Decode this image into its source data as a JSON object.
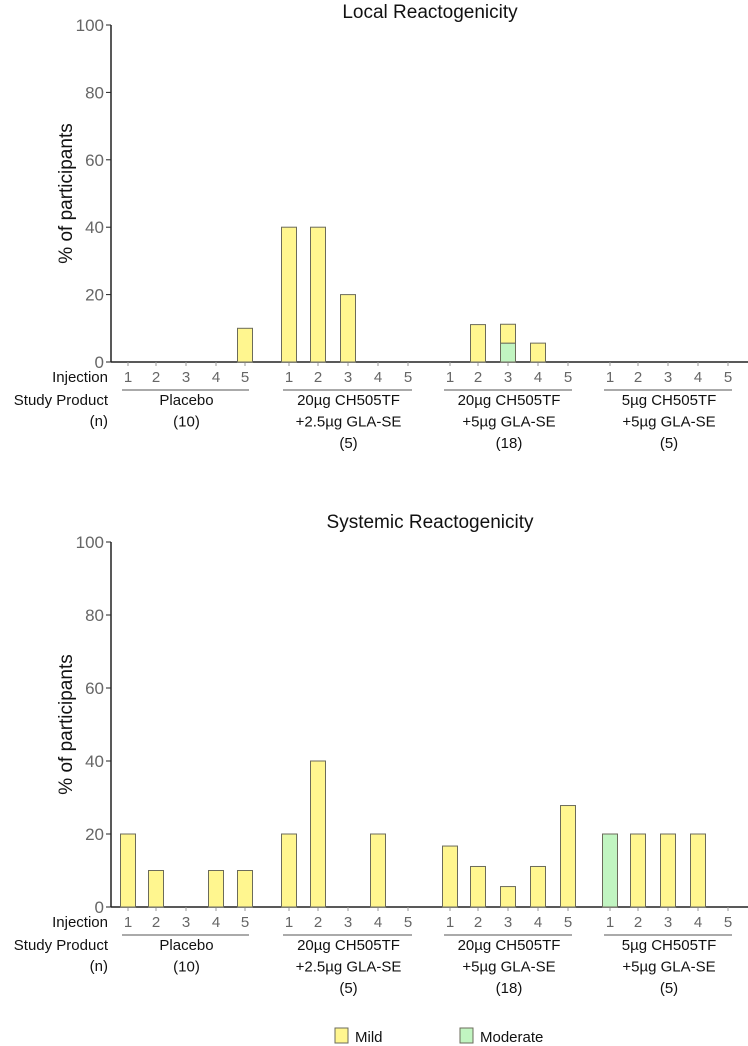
{
  "colors": {
    "mild": "#fff68f",
    "moderate": "#c1f5c1",
    "bar_stroke": "#6b6b5b",
    "axis": "#222222",
    "tick_label": "#666666"
  },
  "chart_data": [
    {
      "type": "bar",
      "stacked": true,
      "title": "Local Reactogenicity",
      "ylabel": "% of participants",
      "ylim": [
        0,
        100
      ],
      "yticks": [
        "0",
        "20",
        "40",
        "60",
        "80",
        "100"
      ],
      "row_labels": {
        "injection": "Injection",
        "study_product": "Study Product",
        "n": "(n)"
      },
      "groups": [
        {
          "lines": [
            "Placebo",
            "(10)"
          ],
          "injections": [
            "1",
            "2",
            "3",
            "4",
            "5"
          ],
          "mild": [
            0,
            0,
            0,
            0,
            10
          ],
          "moderate": [
            0,
            0,
            0,
            0,
            0
          ]
        },
        {
          "lines": [
            "20µg CH505TF",
            "+2.5µg GLA-SE",
            "(5)"
          ],
          "injections": [
            "1",
            "2",
            "3",
            "4",
            "5"
          ],
          "mild": [
            40,
            40,
            20,
            0,
            0
          ],
          "moderate": [
            0,
            0,
            0,
            0,
            0
          ]
        },
        {
          "lines": [
            "20µg CH505TF",
            "+5µg GLA-SE",
            "(18)"
          ],
          "injections": [
            "1",
            "2",
            "3",
            "4",
            "5"
          ],
          "mild": [
            0,
            11.1,
            5.6,
            5.6,
            0
          ],
          "moderate": [
            0,
            0,
            5.6,
            0,
            0
          ]
        },
        {
          "lines": [
            "5µg CH505TF",
            "+5µg GLA-SE",
            "(5)"
          ],
          "injections": [
            "1",
            "2",
            "3",
            "4",
            "5"
          ],
          "mild": [
            0,
            0,
            0,
            0,
            0
          ],
          "moderate": [
            0,
            0,
            0,
            0,
            0
          ]
        }
      ]
    },
    {
      "type": "bar",
      "stacked": true,
      "title": "Systemic Reactogenicity",
      "ylabel": "% of participants",
      "ylim": [
        0,
        100
      ],
      "yticks": [
        "0",
        "20",
        "40",
        "60",
        "80",
        "100"
      ],
      "row_labels": {
        "injection": "Injection",
        "study_product": "Study Product",
        "n": "(n)"
      },
      "groups": [
        {
          "lines": [
            "Placebo",
            "(10)"
          ],
          "injections": [
            "1",
            "2",
            "3",
            "4",
            "5"
          ],
          "mild": [
            20,
            10,
            0,
            10,
            10
          ],
          "moderate": [
            0,
            0,
            0,
            0,
            0
          ]
        },
        {
          "lines": [
            "20µg CH505TF",
            "+2.5µg GLA-SE",
            "(5)"
          ],
          "injections": [
            "1",
            "2",
            "3",
            "4",
            "5"
          ],
          "mild": [
            20,
            40,
            0,
            20,
            0
          ],
          "moderate": [
            0,
            0,
            0,
            0,
            0
          ]
        },
        {
          "lines": [
            "20µg CH505TF",
            "+5µg GLA-SE",
            "(18)"
          ],
          "injections": [
            "1",
            "2",
            "3",
            "4",
            "5"
          ],
          "mild": [
            16.7,
            11.1,
            5.6,
            11.1,
            27.8
          ],
          "moderate": [
            0,
            0,
            0,
            0,
            0
          ]
        },
        {
          "lines": [
            "5µg CH505TF",
            "+5µg GLA-SE",
            "(5)"
          ],
          "injections": [
            "1",
            "2",
            "3",
            "4",
            "5"
          ],
          "mild": [
            0,
            20,
            20,
            20,
            0
          ],
          "moderate": [
            20,
            0,
            0,
            0,
            0
          ]
        }
      ]
    }
  ],
  "legend": [
    {
      "label": "Mild",
      "key": "mild"
    },
    {
      "label": "Moderate",
      "key": "moderate"
    }
  ]
}
